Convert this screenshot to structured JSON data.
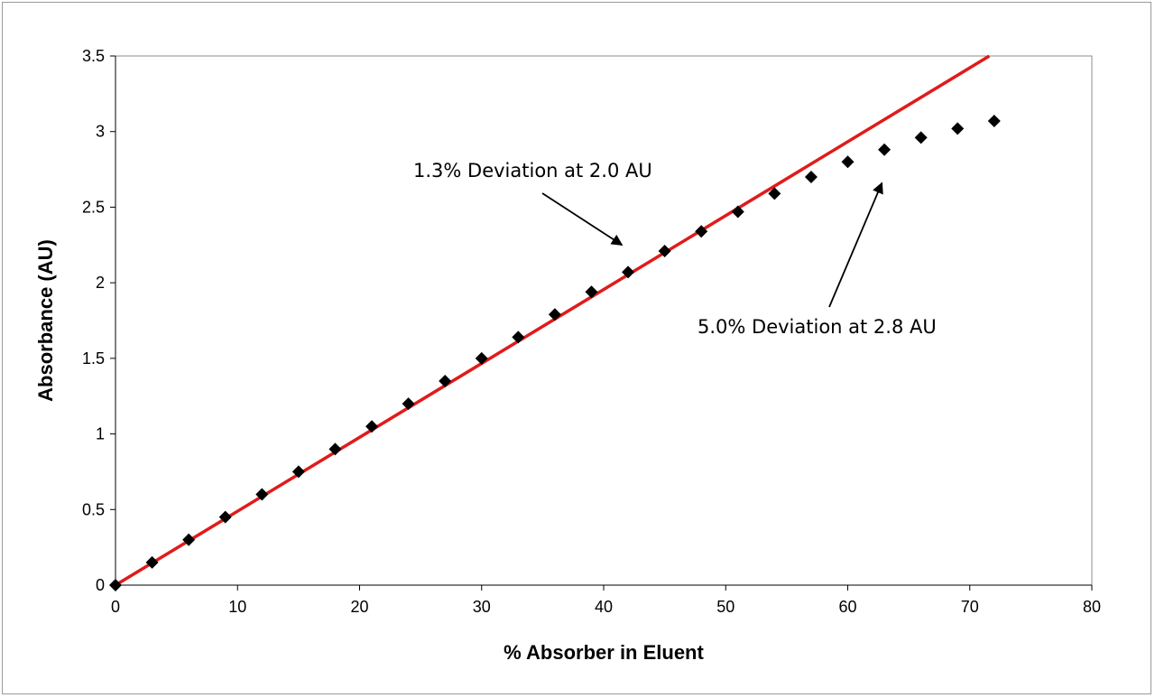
{
  "chart_data": {
    "type": "scatter",
    "xlabel": "% Absorber in Eluent",
    "ylabel": "Absorbance (AU)",
    "xlim": [
      0,
      80
    ],
    "ylim": [
      0,
      3.5
    ],
    "xticks": [
      "0",
      "10",
      "20",
      "30",
      "40",
      "50",
      "60",
      "70",
      "80"
    ],
    "yticks": [
      "0",
      "0.5",
      "1",
      "1.5",
      "2",
      "2.5",
      "3",
      "3.5"
    ],
    "grid": false,
    "series": [
      {
        "kind": "points",
        "marker": "diamond",
        "color": "#000000",
        "x": [
          0,
          3,
          6,
          9,
          12,
          15,
          18,
          21,
          24,
          27,
          30,
          33,
          36,
          39,
          42,
          45,
          48,
          51,
          54,
          57,
          60,
          63,
          66,
          69,
          72
        ],
        "y": [
          0,
          0.15,
          0.3,
          0.45,
          0.6,
          0.75,
          0.9,
          1.05,
          1.2,
          1.35,
          1.5,
          1.64,
          1.79,
          1.94,
          2.07,
          2.21,
          2.34,
          2.47,
          2.59,
          2.7,
          2.8,
          2.88,
          2.96,
          3.02,
          3.07
        ]
      },
      {
        "kind": "line",
        "color": "#e01b1b",
        "x": [
          0,
          71.6
        ],
        "y": [
          0,
          3.5
        ]
      }
    ],
    "annotations": [
      {
        "text": "1.3% Deviation at 2.0 AU",
        "arrow_to": [
          41.5,
          2.25
        ]
      },
      {
        "text": "5.0% Deviation at 2.8 AU",
        "arrow_to": [
          62.8,
          2.66
        ]
      }
    ]
  }
}
